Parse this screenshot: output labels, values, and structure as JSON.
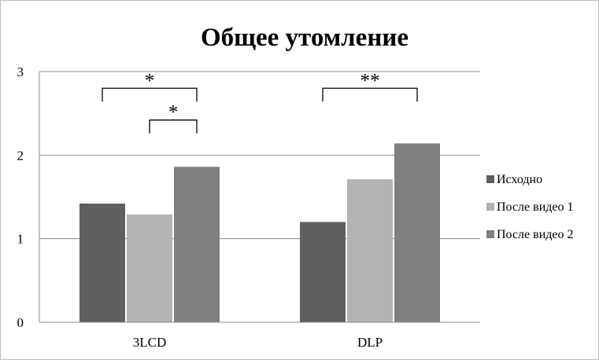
{
  "chart_data": {
    "type": "bar",
    "title": "Общее утомление",
    "xlabel": "",
    "ylabel": "",
    "categories": [
      "3LCD",
      "DLP"
    ],
    "ylim": [
      0,
      3
    ],
    "yticks": [
      "0",
      "1",
      "2",
      "3"
    ],
    "grid": true,
    "legend_position": "right",
    "series": [
      {
        "name": "Исходно",
        "values": [
          1.42,
          1.2
        ],
        "color": "#5f5f5f"
      },
      {
        "name": "После видео 1",
        "values": [
          1.29,
          1.71
        ],
        "color": "#b2b2b2"
      },
      {
        "name": "После видео 2",
        "values": [
          1.86,
          2.14
        ],
        "color": "#808080"
      }
    ],
    "annotations": [
      {
        "label": "*",
        "category": "3LCD",
        "from_series": 0,
        "to_series": 2,
        "level": 2.8
      },
      {
        "label": "*",
        "category": "3LCD",
        "from_series": 1,
        "to_series": 2,
        "level": 2.42
      },
      {
        "label": "**",
        "category": "DLP",
        "from_series": 0,
        "to_series": 2,
        "level": 2.8
      }
    ]
  }
}
